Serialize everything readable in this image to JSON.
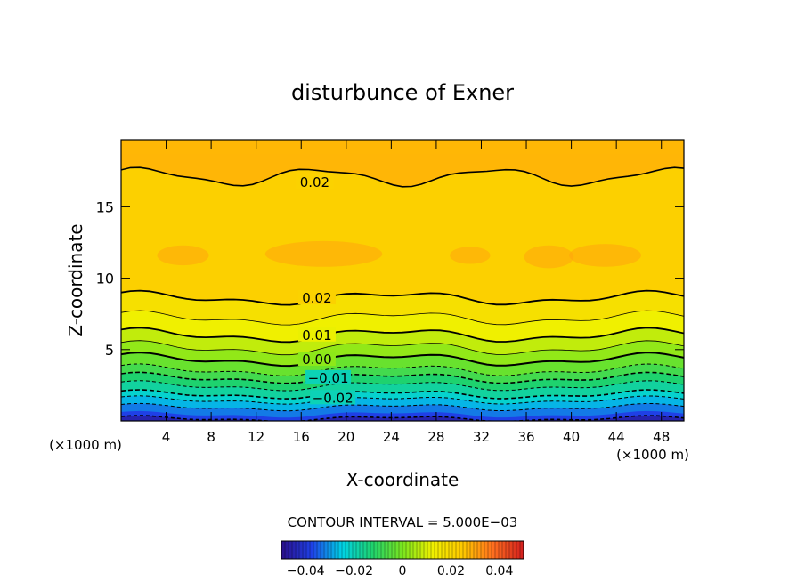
{
  "chart_data": {
    "type": "contour",
    "title": "disturbunce of Exner",
    "xlabel": "X-coordinate",
    "ylabel": "Z-coordinate",
    "x_unit": "(×1000 m)",
    "z_unit": "(×1000 m)",
    "xlim": [
      0,
      50
    ],
    "ylim": [
      0,
      19.7
    ],
    "x_ticks": [
      4,
      8,
      12,
      16,
      20,
      24,
      28,
      32,
      36,
      40,
      44,
      48
    ],
    "y_ticks": [
      5,
      10,
      15
    ],
    "contour_interval_text": "CONTOUR INTERVAL = 5.000E−03",
    "contour_interval": 0.005,
    "colorbar": {
      "min": -0.05,
      "max": 0.05,
      "ticks": [
        -0.04,
        -0.02,
        0,
        0.02,
        0.04
      ],
      "tick_labels": [
        "−0.04",
        "−0.02",
        "0",
        "0.02",
        "0.04"
      ],
      "colors": [
        "#2a0f8a",
        "#1f40e6",
        "#00d2e6",
        "#1ed26e",
        "#7ae61e",
        "#f0f000",
        "#ffc800",
        "#ff6e1e",
        "#d21e1e"
      ]
    },
    "contour_labels": [
      {
        "text": "0.02",
        "x": 17.2,
        "z": 16.7
      },
      {
        "text": "0.02",
        "x": 17.4,
        "z": 8.6
      },
      {
        "text": "0.01",
        "x": 17.4,
        "z": 6.0
      },
      {
        "text": "0.00",
        "x": 17.4,
        "z": 4.3
      },
      {
        "text": "−0.01",
        "x": 18.4,
        "z": 3.0
      },
      {
        "text": "−0.02",
        "x": 18.8,
        "z": 1.6
      }
    ]
  }
}
